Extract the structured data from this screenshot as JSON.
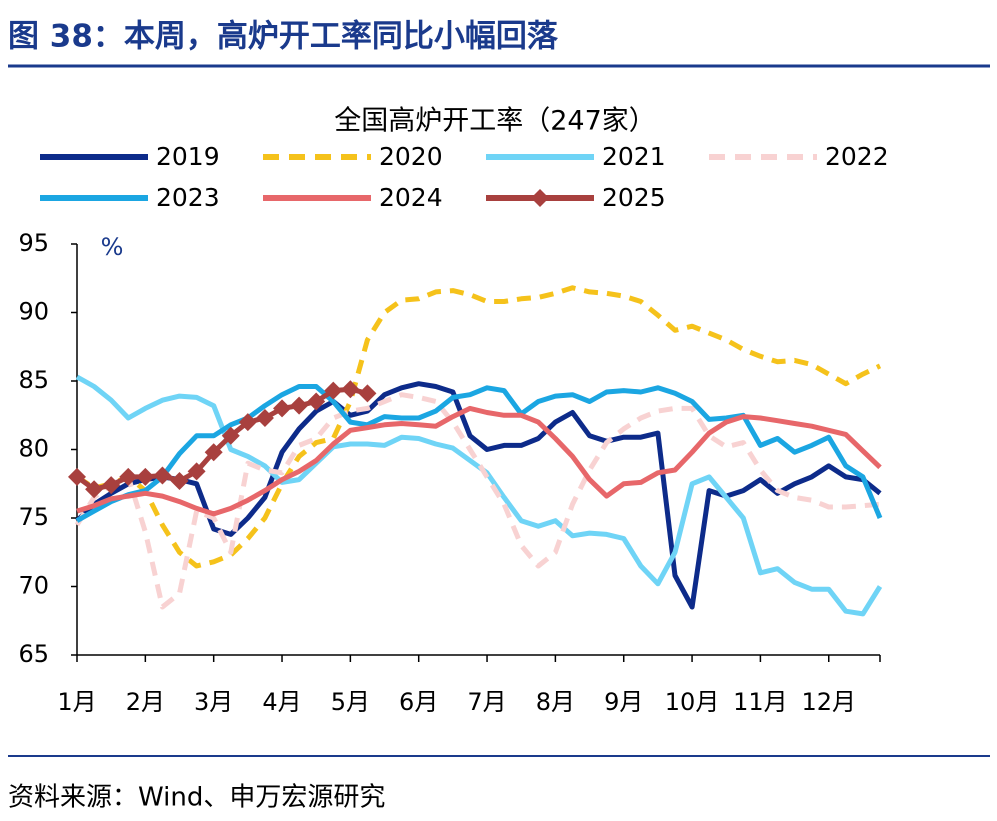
{
  "chart_data": {
    "type": "line",
    "figure_title": "图 38：本周，高炉开工率同比小幅回落",
    "title": "全国高炉开工率（247家）",
    "y_unit": "%",
    "source": "资料来源：Wind、申万宏源研究",
    "categories": [
      "1月",
      null,
      null,
      null,
      "2月",
      null,
      null,
      null,
      "3月",
      null,
      null,
      null,
      "4月",
      null,
      null,
      null,
      "5月",
      null,
      null,
      null,
      "6月",
      null,
      null,
      null,
      "7月",
      null,
      null,
      null,
      "8月",
      null,
      null,
      null,
      "9月",
      null,
      null,
      null,
      "10月",
      null,
      null,
      null,
      "11月",
      null,
      null,
      null,
      "12月",
      null,
      null,
      null
    ],
    "ylim": [
      65,
      95
    ],
    "yticks": [
      65,
      70,
      75,
      80,
      85,
      90,
      95
    ],
    "series": [
      {
        "name": "2019",
        "color": "#0d2b8a",
        "dash": false,
        "values": [
          74.8,
          76.0,
          76.8,
          77.5,
          77.8,
          78.0,
          77.8,
          77.5,
          74.2,
          73.8,
          75.0,
          76.5,
          79.8,
          81.5,
          82.8,
          83.5,
          82.5,
          82.8,
          84.0,
          84.5,
          84.8,
          84.6,
          84.2,
          81.0,
          80.0,
          80.3,
          80.3,
          80.8,
          82.0,
          82.7,
          81.0,
          80.6,
          80.9,
          80.9,
          81.2,
          70.8,
          68.5,
          77.0,
          76.6,
          77.0,
          77.8,
          76.8,
          77.5,
          78.0,
          78.8,
          78.0,
          77.8,
          76.8
        ]
      },
      {
        "name": "2020",
        "color": "#f5c21b",
        "dash": true,
        "values": [
          78.0,
          77.2,
          77.5,
          78.0,
          77.0,
          74.5,
          72.5,
          71.5,
          71.8,
          72.3,
          73.5,
          75.0,
          77.5,
          79.5,
          80.5,
          80.8,
          83.5,
          88.0,
          90.0,
          90.9,
          91.0,
          91.5,
          91.6,
          91.3,
          90.8,
          90.8,
          91.0,
          91.1,
          91.4,
          91.8,
          91.5,
          91.4,
          91.2,
          90.8,
          89.8,
          88.7,
          89.0,
          88.5,
          88.0,
          87.3,
          86.8,
          86.4,
          86.5,
          86.2,
          85.5,
          84.8,
          85.5,
          86.1
        ]
      },
      {
        "name": "2021",
        "color": "#6fd4f6",
        "dash": false,
        "values": [
          85.3,
          84.6,
          83.6,
          82.3,
          83.0,
          83.6,
          83.9,
          83.8,
          83.2,
          80.0,
          79.5,
          78.8,
          77.6,
          77.8,
          79.0,
          80.2,
          80.4,
          80.4,
          80.3,
          80.9,
          80.8,
          80.4,
          80.1,
          79.2,
          78.3,
          76.5,
          74.8,
          74.4,
          74.8,
          73.7,
          73.9,
          73.8,
          73.5,
          71.5,
          70.2,
          72.5,
          77.5,
          78.0,
          76.5,
          75.0,
          71.0,
          71.3,
          70.3,
          69.8,
          69.8,
          68.2,
          68.0,
          70.0
        ]
      },
      {
        "name": "2022",
        "color": "#f8d2d2",
        "dash": true,
        "values": [
          74.5,
          76.5,
          77.5,
          78.0,
          74.0,
          68.5,
          69.5,
          75.5,
          75.0,
          72.5,
          79.0,
          78.5,
          78.3,
          80.3,
          80.8,
          82.3,
          82.8,
          83.0,
          83.5,
          84.0,
          83.8,
          83.5,
          82.0,
          80.0,
          78.0,
          76.0,
          73.0,
          71.5,
          72.5,
          76.0,
          78.5,
          80.5,
          81.5,
          82.3,
          82.8,
          83.0,
          83.0,
          81.0,
          80.2,
          80.5,
          78.5,
          77.0,
          76.5,
          76.3,
          75.8,
          75.8,
          75.9,
          76.0
        ]
      },
      {
        "name": "2023",
        "color": "#1ba6e2",
        "dash": false,
        "values": [
          74.8,
          75.5,
          76.2,
          76.7,
          77.0,
          78.0,
          79.7,
          81.0,
          81.0,
          81.8,
          82.3,
          83.2,
          84.0,
          84.6,
          84.6,
          83.5,
          82.0,
          81.8,
          82.4,
          82.3,
          82.3,
          82.8,
          83.8,
          84.0,
          84.5,
          84.3,
          82.6,
          83.5,
          83.9,
          84.0,
          83.5,
          84.2,
          84.3,
          84.2,
          84.5,
          84.1,
          83.5,
          82.2,
          82.3,
          82.5,
          80.3,
          80.8,
          79.8,
          80.3,
          80.9,
          78.8,
          78.0,
          75.0
        ]
      },
      {
        "name": "2024",
        "color": "#e7676a",
        "dash": false,
        "values": [
          75.5,
          75.9,
          76.4,
          76.6,
          76.8,
          76.6,
          76.2,
          75.7,
          75.3,
          75.7,
          76.3,
          77.0,
          77.8,
          78.4,
          79.2,
          80.4,
          81.4,
          81.6,
          81.8,
          81.9,
          81.8,
          81.7,
          82.4,
          83.0,
          82.7,
          82.5,
          82.5,
          82.0,
          80.8,
          79.5,
          77.8,
          76.6,
          77.5,
          77.6,
          78.3,
          78.5,
          79.8,
          81.2,
          82.0,
          82.4,
          82.3,
          82.1,
          81.9,
          81.7,
          81.4,
          81.1,
          79.9,
          78.7
        ]
      },
      {
        "name": "2025",
        "color": "#a8403e",
        "dash": false,
        "marker": "diamond",
        "values": [
          78.0,
          77.1,
          77.4,
          78.0,
          78.0,
          78.1,
          77.7,
          78.4,
          79.8,
          81.0,
          82.0,
          82.3,
          83.0,
          83.2,
          83.5,
          84.3,
          84.4,
          84.1,
          null,
          null,
          null,
          null,
          null,
          null,
          null,
          null,
          null,
          null,
          null,
          null,
          null,
          null,
          null,
          null,
          null,
          null,
          null,
          null,
          null,
          null,
          null,
          null,
          null,
          null,
          null,
          null,
          null,
          null
        ]
      }
    ]
  }
}
